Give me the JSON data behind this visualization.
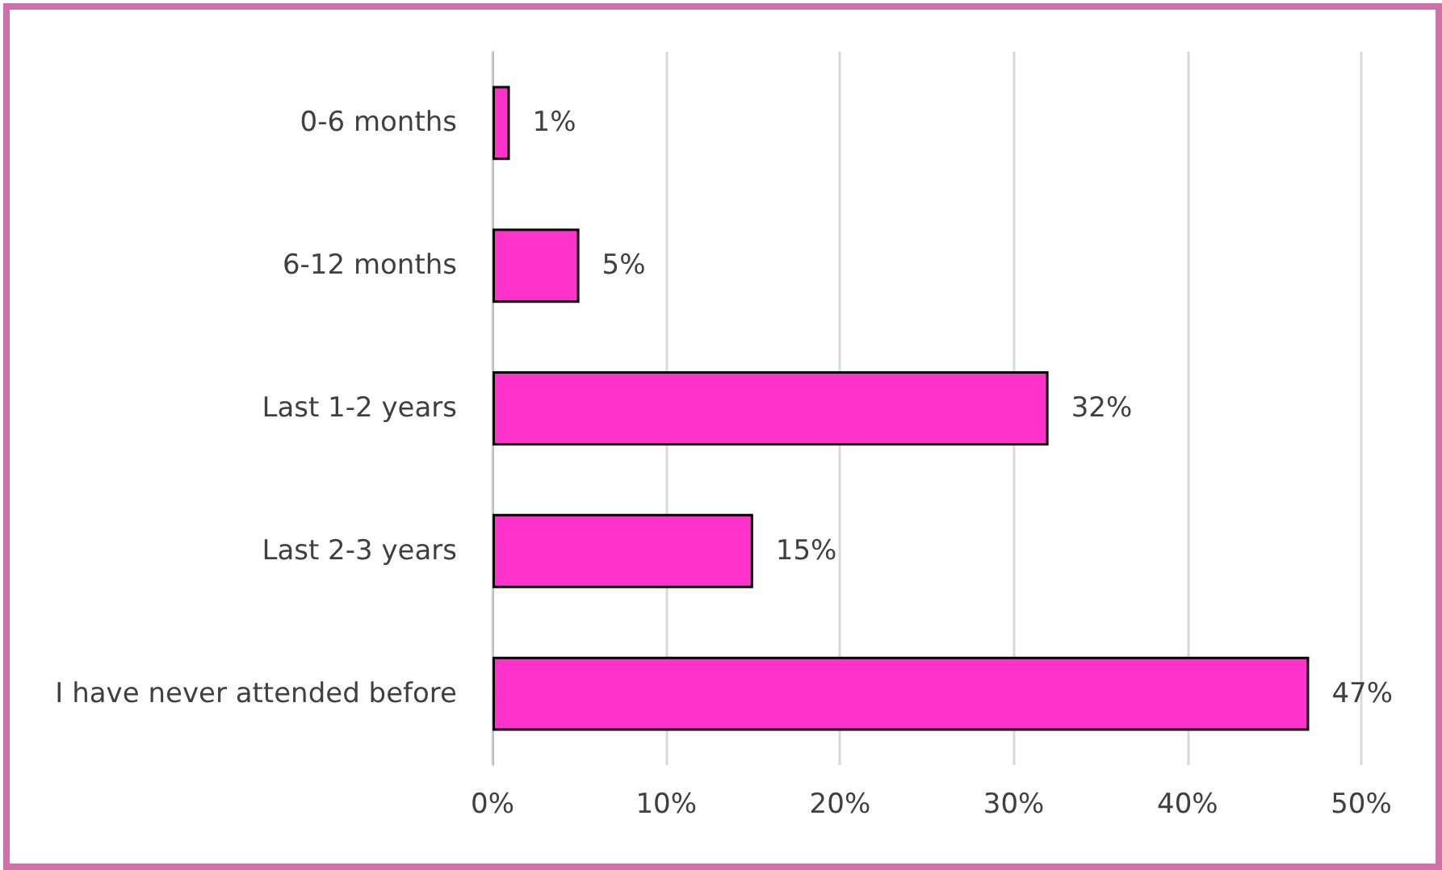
{
  "chart_data": {
    "type": "bar",
    "orientation": "horizontal",
    "categories": [
      "0-6 months",
      "6-12 months",
      "Last 1-2 years",
      "Last 2-3 years",
      "I have never attended before"
    ],
    "values": [
      1,
      5,
      32,
      15,
      47
    ],
    "value_labels": [
      "1%",
      "5%",
      "32%",
      "15%",
      "47%"
    ],
    "color": "#ff33cc",
    "xlim": [
      0,
      50
    ],
    "xticks": [
      {
        "value": 0,
        "label": "0%"
      },
      {
        "value": 10,
        "label": "10%"
      },
      {
        "value": 20,
        "label": "20%"
      },
      {
        "value": 30,
        "label": "30%"
      },
      {
        "value": 40,
        "label": "40%"
      },
      {
        "value": 50,
        "label": "50%"
      }
    ],
    "grid": "x"
  }
}
